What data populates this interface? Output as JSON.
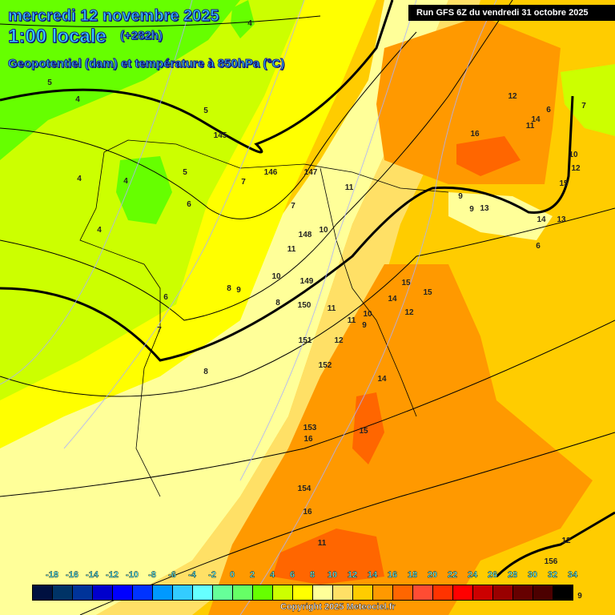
{
  "header": {
    "date": "mercredi 12 novembre 2025",
    "time": "1:00 locale",
    "lead": "(+282h)",
    "parameter": "Geopotentiel (dam) et température à 850hPa (°C)",
    "run": "Run GFS 6Z du vendredi 31 octobre 2025"
  },
  "legend": {
    "labels": [
      "-18",
      "-16",
      "-14",
      "-12",
      "-10",
      "-8",
      "-6",
      "-4",
      "-2",
      "0",
      "2",
      "4",
      "6",
      "8",
      "10",
      "12",
      "14",
      "16",
      "18",
      "20",
      "22",
      "24",
      "26",
      "28",
      "30",
      "32",
      "34"
    ],
    "colors": [
      "#001040",
      "#003366",
      "#003399",
      "#0000cc",
      "#0000ff",
      "#0033ff",
      "#0099ff",
      "#33ccff",
      "#66ffff",
      "#66ff99",
      "#66ff66",
      "#66ff00",
      "#ccff00",
      "#ffff00",
      "#ffff99",
      "#ffe066",
      "#ffcc00",
      "#ff9900",
      "#ff6600",
      "#ff4c33",
      "#ff3300",
      "#ff0000",
      "#cc0000",
      "#990000",
      "#660000",
      "#4c0000",
      "#000000"
    ]
  },
  "copyright": "Copyright 2025 Meteociel.fr",
  "map_labels": [
    "4",
    "5",
    "4",
    "5",
    "145",
    "146",
    "147",
    "4",
    "4",
    "5",
    "6",
    "7",
    "7",
    "11",
    "4",
    "6",
    "7",
    "8",
    "9",
    "10",
    "148",
    "11",
    "10",
    "149",
    "8",
    "150",
    "11",
    "10",
    "9",
    "11",
    "12",
    "151",
    "152",
    "8",
    "12",
    "14",
    "15",
    "15",
    "12",
    "16",
    "14",
    "11",
    "6",
    "7",
    "10",
    "12",
    "15",
    "14",
    "13",
    "6",
    "9",
    "9",
    "13",
    "153",
    "16",
    "15",
    "14",
    "154",
    "16",
    "11",
    "12",
    "156",
    "9"
  ]
}
